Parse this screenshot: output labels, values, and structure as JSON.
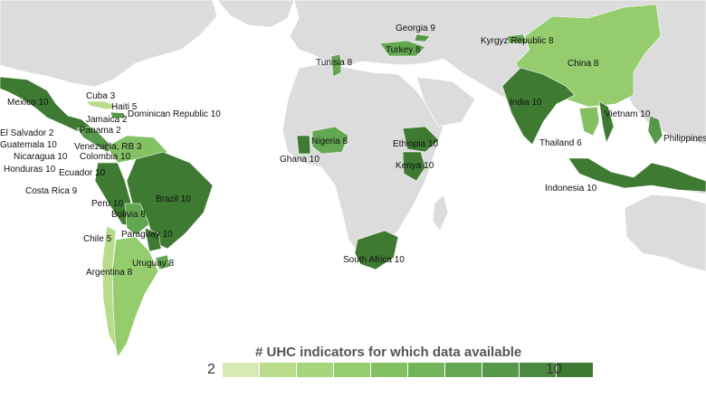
{
  "legend": {
    "title": "# UHC indicators for which data available",
    "min_label": "2",
    "max_label": "10",
    "scale_colors": [
      "#d9e9b6",
      "#b8dc8c",
      "#a6d67c",
      "#94cc6e",
      "#83c163",
      "#73b55a",
      "#64a752",
      "#56994a",
      "#4a8a40",
      "#3e7a32"
    ]
  },
  "colors": {
    "land_no_data": "#dcdcdc",
    "ocean": "#ffffff"
  },
  "countries": [
    {
      "name": "Mexico",
      "value": 10,
      "label": "Mexico 10"
    },
    {
      "name": "Cuba",
      "value": 3,
      "label": "Cuba 3"
    },
    {
      "name": "Haiti",
      "value": 5,
      "label": "Haiti 5"
    },
    {
      "name": "Jamaica",
      "value": 2,
      "label": "Jamaica 2"
    },
    {
      "name": "Dominican Republic",
      "value": 10,
      "label": "Dominican Republic 10"
    },
    {
      "name": "Panama",
      "value": 2,
      "label": "Panama 2"
    },
    {
      "name": "El Salvador",
      "value": 2,
      "label": "El Salvador 2"
    },
    {
      "name": "Venezuela, RB",
      "value": 3,
      "label": "Venezuela, RB 3"
    },
    {
      "name": "Guatemala",
      "value": 10,
      "label": "Guatemala 10"
    },
    {
      "name": "Colombia",
      "value": 10,
      "label": "Colombia 10"
    },
    {
      "name": "Nicaragua",
      "value": 10,
      "label": "Nicaragua 10"
    },
    {
      "name": "Honduras",
      "value": 10,
      "label": "Honduras 10"
    },
    {
      "name": "Ecuador",
      "value": 10,
      "label": "Ecuador 10"
    },
    {
      "name": "Costa Rica",
      "value": 9,
      "label": "Costa Rica 9"
    },
    {
      "name": "Peru",
      "value": 10,
      "label": "Peru 10"
    },
    {
      "name": "Brazil",
      "value": 10,
      "label": "Brazil 10"
    },
    {
      "name": "Bolivia",
      "value": 8,
      "label": "Bolivia 8"
    },
    {
      "name": "Chile",
      "value": 5,
      "label": "Chile 5"
    },
    {
      "name": "Paraguay",
      "value": 10,
      "label": "Paraguay 10"
    },
    {
      "name": "Uruguay",
      "value": 8,
      "label": "Uruguay 8"
    },
    {
      "name": "Argentina",
      "value": 8,
      "label": "Argentina 8"
    },
    {
      "name": "Georgia",
      "value": 9,
      "label": "Georgia 9"
    },
    {
      "name": "Turkey",
      "value": 8,
      "label": "Turkey 8"
    },
    {
      "name": "Tunisia",
      "value": 8,
      "label": "Tunisia 8"
    },
    {
      "name": "Kyrgyz Republic",
      "value": 8,
      "label": "Kyrgyz Republic 8"
    },
    {
      "name": "China",
      "value": 8,
      "label": "China 8"
    },
    {
      "name": "India",
      "value": 10,
      "label": "India 10"
    },
    {
      "name": "Vietnam",
      "value": 10,
      "label": "Vietnam 10"
    },
    {
      "name": "Philippines",
      "value": null,
      "label": "Philippines"
    },
    {
      "name": "Thailand",
      "value": 6,
      "label": "Thailand 6"
    },
    {
      "name": "Indonesia",
      "value": 10,
      "label": "Indonesia 10"
    },
    {
      "name": "Nigeria",
      "value": 8,
      "label": "Nigeria 8"
    },
    {
      "name": "Ghana",
      "value": 10,
      "label": "Ghana 10"
    },
    {
      "name": "Ethiopia",
      "value": 10,
      "label": "Ethiopia 10"
    },
    {
      "name": "Kenya",
      "value": 10,
      "label": "Kenya 10"
    },
    {
      "name": "South Africa",
      "value": 10,
      "label": "South Africa 10"
    }
  ]
}
